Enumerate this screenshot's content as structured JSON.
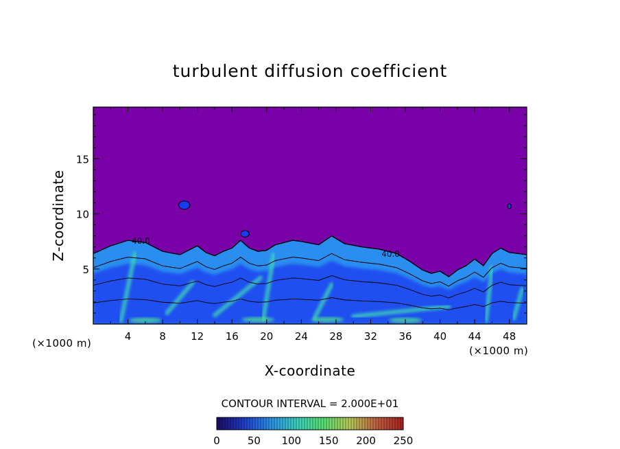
{
  "chart_data": {
    "type": "heatmap",
    "title": "turbulent diffusion coefficient",
    "xlabel": "X-coordinate",
    "ylabel": "Z-coordinate",
    "x_unit_left": "(×1000 m)",
    "x_unit_right": "(×1000 m)",
    "xlim": [
      0,
      50
    ],
    "ylim": [
      0,
      19.7
    ],
    "xticks": [
      4,
      8,
      12,
      16,
      20,
      24,
      28,
      32,
      36,
      40,
      44,
      48
    ],
    "yticks": [
      5,
      10,
      15
    ],
    "contour_interval_text": "CONTOUR INTERVAL = 2.000E+01",
    "contour_labels": [
      {
        "text": "40.0",
        "x": 5.5,
        "z": 7.3
      },
      {
        "text": "40.0",
        "x": 34.3,
        "z": 6.1
      }
    ],
    "colorbar": {
      "range": [
        0,
        250
      ],
      "ticks": [
        0,
        50,
        100,
        150,
        200,
        250
      ],
      "colors": [
        "#1a0a60",
        "#1e3cc8",
        "#2b8ee8",
        "#3cd0c0",
        "#55e070",
        "#b8c858",
        "#c06040",
        "#a82020"
      ]
    },
    "field_colors": {
      "background": "#7a00a8",
      "low": "#1a3af0",
      "mid": "#2a8ef0",
      "high": "#3cd8b8",
      "peak": "#50e890"
    },
    "boundary_layer_top": [
      [
        0,
        6.4
      ],
      [
        2,
        7.1
      ],
      [
        4,
        7.6
      ],
      [
        6,
        7.4
      ],
      [
        8,
        6.6
      ],
      [
        10,
        6.3
      ],
      [
        11,
        6.7
      ],
      [
        12,
        7.1
      ],
      [
        13,
        6.5
      ],
      [
        14,
        6.2
      ],
      [
        15,
        6.6
      ],
      [
        16,
        6.9
      ],
      [
        17,
        7.6
      ],
      [
        18,
        6.9
      ],
      [
        19,
        6.6
      ],
      [
        20,
        6.7
      ],
      [
        21,
        7.2
      ],
      [
        22,
        7.4
      ],
      [
        23,
        7.6
      ],
      [
        24,
        7.5
      ],
      [
        26,
        7.2
      ],
      [
        27.5,
        8.0
      ],
      [
        29,
        7.3
      ],
      [
        31,
        7.0
      ],
      [
        33,
        6.8
      ],
      [
        35,
        6.4
      ],
      [
        36.5,
        5.7
      ],
      [
        38,
        4.9
      ],
      [
        39,
        4.6
      ],
      [
        40,
        4.8
      ],
      [
        41,
        4.3
      ],
      [
        42,
        4.9
      ],
      [
        43,
        5.3
      ],
      [
        44,
        5.9
      ],
      [
        45,
        5.3
      ],
      [
        46,
        6.4
      ],
      [
        47,
        6.9
      ],
      [
        48,
        6.5
      ],
      [
        49,
        6.4
      ],
      [
        50,
        6.3
      ]
    ]
  }
}
